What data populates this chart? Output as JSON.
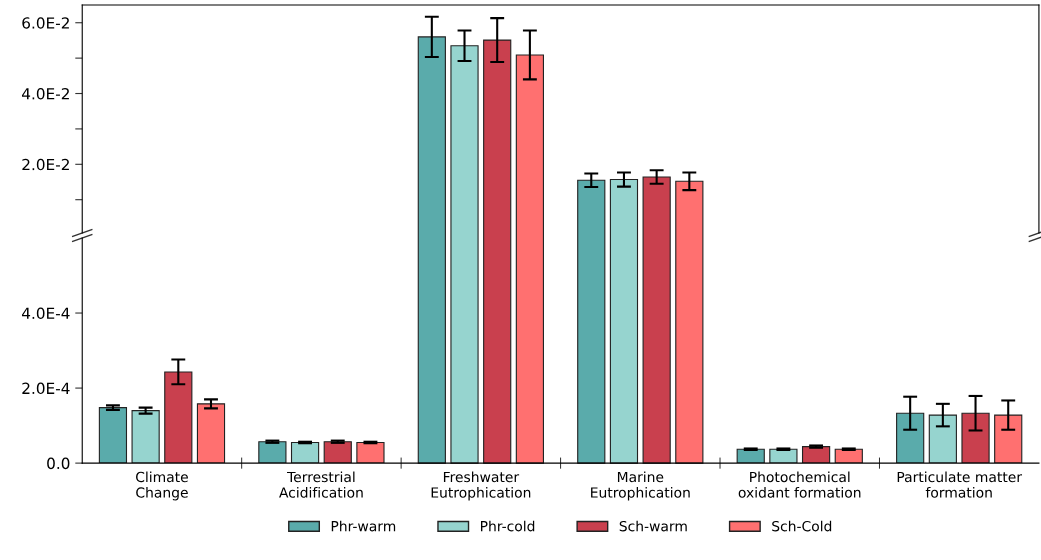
{
  "chart_data": [
    {
      "type": "bar",
      "categories": [
        null,
        null,
        null,
        null,
        null,
        null
      ],
      "ylim": [
        0.0006,
        0.065
      ],
      "yticks": [
        {
          "value": 0.01,
          "label": null
        },
        {
          "value": 0.02,
          "label": "2.0E-2"
        },
        {
          "value": 0.03,
          "label": null
        },
        {
          "value": 0.04,
          "label": "4.0E-2"
        },
        {
          "value": 0.05,
          "label": null
        },
        {
          "value": 0.06,
          "label": "6.0E-2"
        }
      ],
      "tick_labels": "y",
      "grid": false,
      "legend": false,
      "series": [
        {
          "color": "#5aabab",
          "values": [
            null,
            null,
            0.056,
            0.0155,
            null,
            null
          ],
          "errors": [
            null,
            null,
            0.0057,
            0.0019,
            null,
            null
          ]
        },
        {
          "color": "#96d4cf",
          "values": [
            null,
            null,
            0.0535,
            0.0157,
            null,
            null
          ],
          "errors": [
            null,
            null,
            0.0043,
            0.002,
            null,
            null
          ]
        },
        {
          "color": "#c9404e",
          "values": [
            null,
            null,
            0.0551,
            0.0164,
            null,
            null
          ],
          "errors": [
            null,
            null,
            0.0062,
            0.0019,
            null,
            null
          ]
        },
        {
          "color": "#ff7070",
          "values": [
            null,
            null,
            0.0509,
            0.0152,
            null,
            null
          ],
          "errors": [
            null,
            null,
            0.0069,
            0.0025,
            null,
            null
          ]
        }
      ]
    },
    {
      "type": "bar",
      "categories": [
        "Climate\nChange",
        "Terrestrial\nAcidification",
        "Freshwater\nEutrophication",
        "Marine\nEutrophication",
        "Photochemical\noxidant formation",
        "Particulate matter\nformation"
      ],
      "ylim": [
        0,
        0.0006
      ],
      "yticks": [
        {
          "value": 0,
          "label": "0.0"
        },
        {
          "value": 0.0002,
          "label": "2.0E-4"
        },
        {
          "value": 0.0004,
          "label": "4.0E-4"
        }
      ],
      "grid": false,
      "legend": "bottom",
      "series": [
        {
          "name": "Phr-warm",
          "color": "#5aabab",
          "values": [
            0.000148,
            5.7e-05,
            null,
            null,
            3.7e-05,
            0.000133
          ],
          "errors": [
            6e-06,
            3e-06,
            null,
            null,
            2e-06,
            4.4e-05
          ]
        },
        {
          "name": "Phr-cold",
          "color": "#96d4cf",
          "values": [
            0.00014,
            5.5e-05,
            null,
            null,
            3.7e-05,
            0.000128
          ],
          "errors": [
            8e-06,
            2e-06,
            null,
            null,
            2e-06,
            3e-05
          ]
        },
        {
          "name": "Sch-warm",
          "color": "#c9404e",
          "values": [
            0.000243,
            5.7e-05,
            null,
            null,
            4.4e-05,
            0.000133
          ],
          "errors": [
            3.3e-05,
            3e-06,
            null,
            null,
            3e-06,
            4.6e-05
          ]
        },
        {
          "name": "Sch-Cold",
          "color": "#ff7070",
          "values": [
            0.000158,
            5.5e-05,
            null,
            null,
            3.7e-05,
            0.000128
          ],
          "errors": [
            1.2e-05,
            2e-06,
            null,
            null,
            2e-06,
            3.9e-05
          ]
        }
      ]
    }
  ]
}
